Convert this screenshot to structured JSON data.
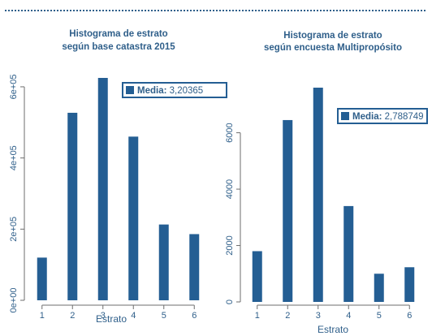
{
  "chart_data": [
    {
      "type": "bar",
      "title": [
        "Histograma de estrato",
        "según base catastra 2015"
      ],
      "xlabel": "Estrato",
      "ylabel": "",
      "categories": [
        "1",
        "2",
        "3",
        "4",
        "5",
        "6"
      ],
      "values": [
        120000,
        527000,
        625000,
        460000,
        213000,
        186000
      ],
      "ylim": [
        0,
        625000
      ],
      "yticks": [
        0,
        200000,
        400000,
        600000
      ],
      "ytick_labels": [
        "0e+00",
        "2e+05",
        "4e+05",
        "6e+05"
      ],
      "legend": {
        "label": "Media:",
        "value": "3,20365",
        "position": "top-right"
      },
      "color": "#245e93"
    },
    {
      "type": "bar",
      "title": [
        "Histograma de estrato",
        "según encuesta Multipropósito"
      ],
      "xlabel": "Estrato",
      "ylabel": "",
      "categories": [
        "1",
        "2",
        "3",
        "4",
        "5",
        "6"
      ],
      "values": [
        1800,
        6450,
        7600,
        3400,
        1000,
        1230
      ],
      "ylim": [
        0,
        7600
      ],
      "yticks": [
        0,
        2000,
        4000,
        6000
      ],
      "ytick_labels": [
        "0",
        "2000",
        "4000",
        "6000"
      ],
      "legend": {
        "label": "Media:",
        "value": "2,788749",
        "position": "top-right"
      },
      "color": "#245e93"
    }
  ]
}
